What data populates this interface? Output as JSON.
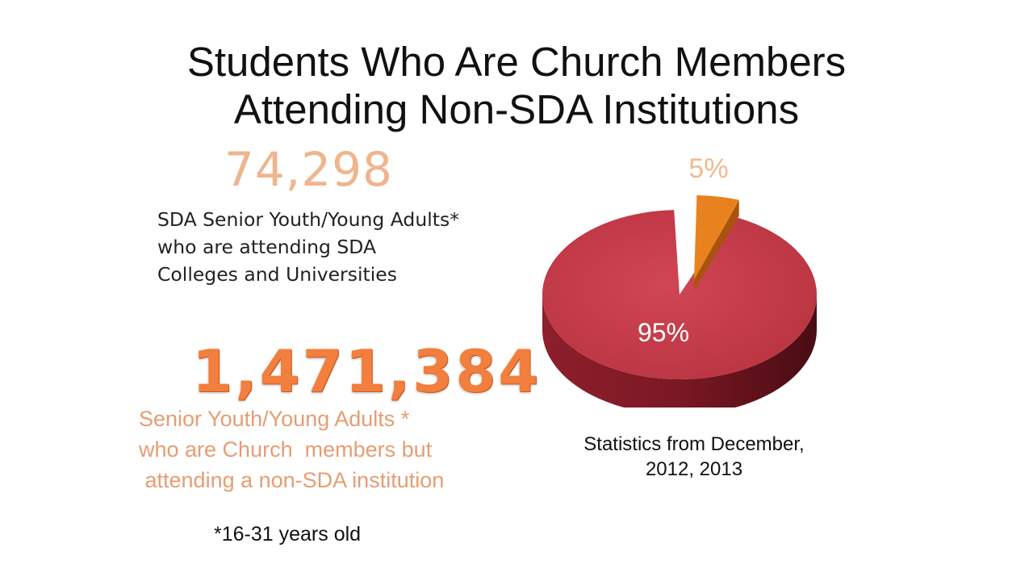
{
  "title": {
    "line1": "Students Who Are Church Members",
    "line2": "Attending Non-SDA Institutions"
  },
  "stat_sda": {
    "value": "74,298",
    "description_lines": [
      "SDA Senior Youth/Young Adults*",
      "who are attending SDA",
      "Colleges and Universities"
    ]
  },
  "stat_non_sda": {
    "value": "1,471,384",
    "description_lines": [
      "Senior Youth/Young Adults *",
      "who are Church  members but",
      " attending a non-SDA institution"
    ]
  },
  "footnote": "*16-31 years old",
  "source": {
    "line1": "Statistics from December,",
    "line2": "2012, 2013"
  },
  "chart_data": {
    "type": "pie",
    "slices": [
      {
        "label": "5%",
        "value": 5,
        "color": "#e8821e"
      },
      {
        "label": "95%",
        "value": 95,
        "color": "#c73b4a"
      }
    ]
  }
}
